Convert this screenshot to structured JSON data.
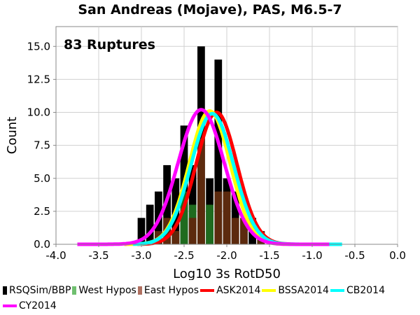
{
  "chart_data": {
    "type": "bar",
    "title": "San Andreas (Mojave), PAS, M6.5-7",
    "annotation": "83 Ruptures",
    "xlabel": "Log10 3s RotD50",
    "ylabel": "Count",
    "xlim": [
      -4.0,
      0.0
    ],
    "ylim": [
      0.0,
      16.5
    ],
    "grid": true,
    "legend_position": "bottom",
    "x_ticks": [
      "-4.0",
      "-3.5",
      "-3.0",
      "-2.5",
      "-2.0",
      "-1.5",
      "-1.0",
      "-0.5",
      "0.0"
    ],
    "y_ticks": [
      "0.0",
      "2.5",
      "5.0",
      "7.5",
      "10.0",
      "12.5",
      "15.0"
    ],
    "bin_width": 0.1,
    "bin_centers": [
      -3.0,
      -2.9,
      -2.8,
      -2.7,
      -2.6,
      -2.5,
      -2.4,
      -2.3,
      -2.2,
      -2.1,
      -2.0,
      -1.9,
      -1.8,
      -1.7,
      -1.6
    ],
    "series": [
      {
        "name": "RSQSim/BBP",
        "color": "#000000",
        "values": [
          2,
          3,
          4,
          6,
          5,
          9,
          6,
          15,
          5,
          14,
          5,
          4,
          2,
          2,
          1
        ]
      },
      {
        "name": "West Hypos",
        "color": "#1f6b1f",
        "values": [
          0,
          0,
          0,
          0,
          1,
          4,
          3,
          4,
          3,
          0,
          0,
          0,
          0,
          0,
          0
        ]
      },
      {
        "name": "East Hypos",
        "color": "#5c2a0e",
        "values": [
          0,
          0,
          1,
          2,
          1,
          0,
          2,
          8,
          0,
          4,
          4,
          2,
          2,
          0,
          1
        ]
      }
    ],
    "curves": [
      {
        "name": "ASK2014",
        "color": "#ff0000",
        "mean": -2.12,
        "sigma": 0.24,
        "peak": 10.0,
        "range": [
          -3.05,
          -1.25
        ]
      },
      {
        "name": "BSSA2014",
        "color": "#ffff00",
        "mean": -2.2,
        "sigma": 0.24,
        "peak": 10.1,
        "range": [
          -3.2,
          -1.0
        ]
      },
      {
        "name": "CB2014",
        "color": "#00ffff",
        "mean": -2.17,
        "sigma": 0.25,
        "peak": 9.9,
        "range": [
          -3.1,
          -0.65
        ]
      },
      {
        "name": "CY2014",
        "color": "#ff00ff",
        "mean": -2.3,
        "sigma": 0.27,
        "peak": 10.2,
        "range": [
          -3.75,
          -0.8
        ]
      }
    ]
  }
}
